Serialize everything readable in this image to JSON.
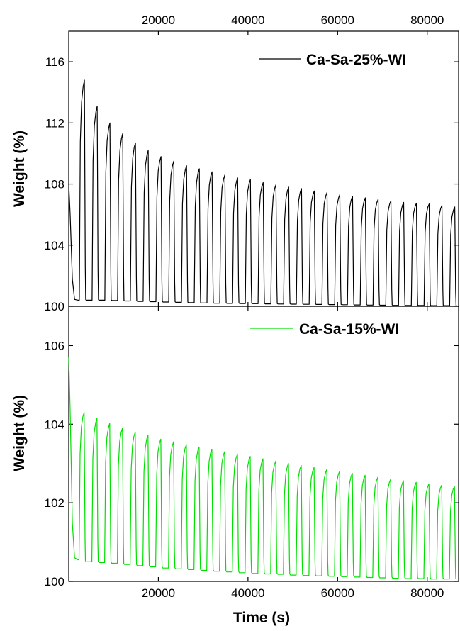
{
  "chart_data": [
    {
      "type": "line",
      "panel": "top",
      "ylabel": "Weight (%)",
      "xlabel": "",
      "xlim": [
        0,
        87000
      ],
      "ylim": [
        100,
        118
      ],
      "x_ticks": [
        20000,
        40000,
        60000,
        80000
      ],
      "x_tick_labels_position": "top",
      "y_ticks": [
        100,
        104,
        108,
        112,
        116
      ],
      "legend": "top-right",
      "series": [
        {
          "name": "Ca-Sa-25%-WI",
          "color": "#000000",
          "initial": {
            "start": 108.0,
            "trough": 100.4
          },
          "cycle_period_s": 2850,
          "cycle_start_s": 2350,
          "peaks": [
            114.8,
            113.1,
            112.0,
            111.3,
            110.7,
            110.2,
            109.8,
            109.5,
            109.2,
            109.0,
            108.8,
            108.6,
            108.4,
            108.3,
            108.1,
            107.95,
            107.8,
            107.7,
            107.55,
            107.45,
            107.3,
            107.2,
            107.1,
            107.0,
            106.9,
            106.8,
            106.75,
            106.7,
            106.6,
            106.5,
            106.45,
            106.4,
            106.3,
            106.25,
            106.2,
            106.2
          ],
          "troughs": [
            100.4,
            100.4,
            100.38,
            100.35,
            100.32,
            100.3,
            100.28,
            100.26,
            100.24,
            100.22,
            100.2,
            100.19,
            100.18,
            100.17,
            100.16,
            100.15,
            100.14,
            100.13,
            100.12,
            100.11,
            100.1,
            100.09,
            100.08,
            100.07,
            100.06,
            100.05,
            100.05,
            100.04,
            100.04,
            100.03,
            100.03,
            100.02,
            100.02,
            100.01,
            100.01,
            100.0
          ]
        }
      ]
    },
    {
      "type": "line",
      "panel": "bottom",
      "ylabel": "Weight (%)",
      "xlabel": "Time (s)",
      "xlim": [
        0,
        87000
      ],
      "ylim": [
        100,
        107
      ],
      "x_ticks": [
        20000,
        40000,
        60000,
        80000
      ],
      "y_ticks": [
        100,
        102,
        104,
        106
      ],
      "legend": "top-right",
      "series": [
        {
          "name": "Ca-Sa-15%-WI",
          "color": "#00e000",
          "initial": {
            "start": 105.7,
            "trough": 100.55
          },
          "cycle_period_s": 2850,
          "cycle_start_s": 2300,
          "peaks": [
            104.3,
            104.15,
            104.02,
            103.9,
            103.8,
            103.72,
            103.62,
            103.55,
            103.48,
            103.42,
            103.36,
            103.3,
            103.24,
            103.18,
            103.12,
            103.06,
            103.0,
            102.95,
            102.9,
            102.85,
            102.8,
            102.75,
            102.7,
            102.65,
            102.6,
            102.56,
            102.52,
            102.48,
            102.45,
            102.42,
            102.39,
            102.36,
            102.33,
            102.3,
            102.28,
            102.26
          ],
          "troughs": [
            100.5,
            100.48,
            100.46,
            100.43,
            100.4,
            100.37,
            100.34,
            100.32,
            100.3,
            100.28,
            100.26,
            100.24,
            100.22,
            100.2,
            100.19,
            100.18,
            100.16,
            100.15,
            100.14,
            100.13,
            100.12,
            100.11,
            100.1,
            100.09,
            100.08,
            100.07,
            100.07,
            100.06,
            100.06,
            100.05,
            100.05,
            100.04,
            100.04,
            100.03,
            100.03,
            100.02
          ]
        }
      ]
    }
  ]
}
